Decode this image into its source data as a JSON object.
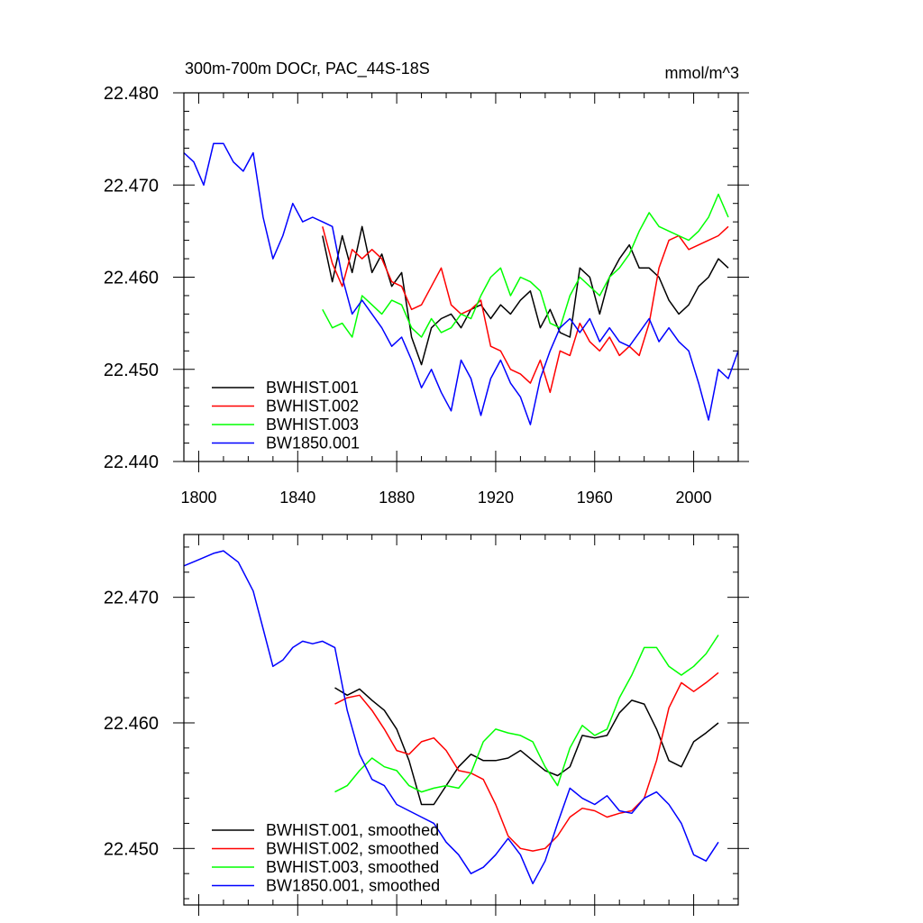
{
  "chart_data": [
    {
      "type": "line",
      "title": "300m-700m DOCr, PAC_44S-18S",
      "units": "mmol/m^3",
      "xlabel": "",
      "ylabel": "",
      "xlim": [
        1794,
        2018
      ],
      "ylim": [
        22.44,
        22.48
      ],
      "xticks": [
        1800,
        1840,
        1880,
        1920,
        1960,
        2000
      ],
      "xtick_labels": [
        "1800",
        "1840",
        "1880",
        "1920",
        "1960",
        "2000"
      ],
      "yticks": [
        22.44,
        22.45,
        22.46,
        22.47,
        22.48
      ],
      "ytick_labels": [
        "22.440",
        "22.450",
        "22.460",
        "22.470",
        "22.480"
      ],
      "grid": false,
      "legend_position": "bottom-left",
      "series": [
        {
          "name": "BWHIST.001",
          "color": "#000000",
          "x": [
            1850,
            1854,
            1858,
            1862,
            1866,
            1870,
            1874,
            1878,
            1882,
            1886,
            1890,
            1894,
            1898,
            1902,
            1906,
            1910,
            1914,
            1918,
            1922,
            1926,
            1930,
            1934,
            1938,
            1942,
            1946,
            1950,
            1954,
            1958,
            1962,
            1966,
            1970,
            1974,
            1978,
            1982,
            1986,
            1990,
            1994,
            1998,
            2002,
            2006,
            2010,
            2014
          ],
          "y": [
            22.4645,
            22.4595,
            22.4645,
            22.4605,
            22.4655,
            22.4605,
            22.4625,
            22.459,
            22.4605,
            22.4535,
            22.4505,
            22.4545,
            22.4555,
            22.456,
            22.4545,
            22.4565,
            22.457,
            22.4555,
            22.457,
            22.456,
            22.4575,
            22.4585,
            22.4545,
            22.4565,
            22.454,
            22.4535,
            22.461,
            22.46,
            22.456,
            22.46,
            22.462,
            22.4635,
            22.461,
            22.461,
            22.46,
            22.4575,
            22.456,
            22.457,
            22.459,
            22.46,
            22.462,
            22.461
          ]
        },
        {
          "name": "BWHIST.002",
          "color": "#ff0000",
          "x": [
            1850,
            1854,
            1858,
            1862,
            1866,
            1870,
            1874,
            1878,
            1882,
            1886,
            1890,
            1894,
            1898,
            1902,
            1906,
            1910,
            1914,
            1918,
            1922,
            1926,
            1930,
            1934,
            1938,
            1942,
            1946,
            1950,
            1954,
            1958,
            1962,
            1966,
            1970,
            1974,
            1978,
            1982,
            1986,
            1990,
            1994,
            1998,
            2002,
            2006,
            2010,
            2014
          ],
          "y": [
            22.4655,
            22.4615,
            22.459,
            22.463,
            22.462,
            22.463,
            22.462,
            22.4595,
            22.459,
            22.4565,
            22.457,
            22.459,
            22.461,
            22.457,
            22.456,
            22.4565,
            22.4575,
            22.4525,
            22.452,
            22.45,
            22.4495,
            22.4485,
            22.451,
            22.4475,
            22.452,
            22.4515,
            22.455,
            22.453,
            22.452,
            22.4535,
            22.4515,
            22.4525,
            22.4515,
            22.455,
            22.461,
            22.464,
            22.4645,
            22.463,
            22.4635,
            22.464,
            22.4645,
            22.4655
          ]
        },
        {
          "name": "BWHIST.003",
          "color": "#00ff00",
          "x": [
            1850,
            1854,
            1858,
            1862,
            1866,
            1870,
            1874,
            1878,
            1882,
            1886,
            1890,
            1894,
            1898,
            1902,
            1906,
            1910,
            1914,
            1918,
            1922,
            1926,
            1930,
            1934,
            1938,
            1942,
            1946,
            1950,
            1954,
            1958,
            1962,
            1966,
            1970,
            1974,
            1978,
            1982,
            1986,
            1990,
            1994,
            1998,
            2002,
            2006,
            2010,
            2014
          ],
          "y": [
            22.4565,
            22.4545,
            22.455,
            22.4535,
            22.458,
            22.457,
            22.456,
            22.4575,
            22.457,
            22.4545,
            22.4535,
            22.4555,
            22.454,
            22.4545,
            22.456,
            22.4555,
            22.458,
            22.46,
            22.461,
            22.458,
            22.46,
            22.4595,
            22.4585,
            22.455,
            22.4545,
            22.458,
            22.46,
            22.459,
            22.458,
            22.46,
            22.461,
            22.4625,
            22.465,
            22.467,
            22.4655,
            22.465,
            22.4645,
            22.464,
            22.465,
            22.4665,
            22.469,
            22.4665
          ]
        },
        {
          "name": "BW1850.001",
          "color": "#0000ff",
          "x": [
            1794,
            1798,
            1802,
            1806,
            1810,
            1814,
            1818,
            1822,
            1826,
            1830,
            1834,
            1838,
            1842,
            1846,
            1850,
            1854,
            1858,
            1862,
            1866,
            1870,
            1874,
            1878,
            1882,
            1886,
            1890,
            1894,
            1898,
            1902,
            1906,
            1910,
            1914,
            1918,
            1922,
            1926,
            1930,
            1934,
            1938,
            1942,
            1946,
            1950,
            1954,
            1958,
            1962,
            1966,
            1970,
            1974,
            1978,
            1982,
            1986,
            1990,
            1994,
            1998,
            2002,
            2006,
            2010,
            2014,
            2018
          ],
          "y": [
            22.4735,
            22.4725,
            22.47,
            22.4745,
            22.4745,
            22.4725,
            22.4715,
            22.4735,
            22.4665,
            22.462,
            22.4645,
            22.468,
            22.466,
            22.4665,
            22.466,
            22.4655,
            22.46,
            22.456,
            22.4575,
            22.456,
            22.4545,
            22.4525,
            22.4535,
            22.451,
            22.448,
            22.45,
            22.4475,
            22.4455,
            22.451,
            22.449,
            22.445,
            22.449,
            22.451,
            22.4485,
            22.447,
            22.444,
            22.449,
            22.452,
            22.4545,
            22.4555,
            22.454,
            22.4555,
            22.453,
            22.4545,
            22.453,
            22.4525,
            22.454,
            22.4555,
            22.453,
            22.4545,
            22.453,
            22.452,
            22.4485,
            22.4445,
            22.45,
            22.449,
            22.452
          ]
        }
      ]
    },
    {
      "type": "line",
      "title": "",
      "xlabel": "",
      "ylabel": "",
      "xlim": [
        1794,
        2018
      ],
      "ylim": [
        22.4455,
        22.475
      ],
      "xticks": [
        1800,
        1840,
        1880,
        1920,
        1960,
        2000
      ],
      "yticks": [
        22.45,
        22.46,
        22.47
      ],
      "ytick_labels": [
        "22.450",
        "22.460",
        "22.470"
      ],
      "grid": false,
      "legend_position": "bottom-left",
      "series": [
        {
          "name": "BWHIST.001, smoothed",
          "color": "#000000",
          "x": [
            1855,
            1860,
            1865,
            1870,
            1875,
            1880,
            1885,
            1890,
            1895,
            1900,
            1905,
            1910,
            1915,
            1920,
            1925,
            1930,
            1935,
            1940,
            1945,
            1950,
            1955,
            1960,
            1965,
            1970,
            1975,
            1980,
            1985,
            1990,
            1995,
            2000,
            2005,
            2010
          ],
          "y": [
            22.4628,
            22.4622,
            22.4627,
            22.4618,
            22.461,
            22.4595,
            22.457,
            22.4535,
            22.4535,
            22.455,
            22.4565,
            22.4575,
            22.457,
            22.457,
            22.4572,
            22.4578,
            22.457,
            22.4562,
            22.4558,
            22.4565,
            22.459,
            22.4588,
            22.459,
            22.4608,
            22.4618,
            22.4615,
            22.4595,
            22.457,
            22.4565,
            22.4585,
            22.4592,
            22.46
          ]
        },
        {
          "name": "BWHIST.002, smoothed",
          "color": "#ff0000",
          "x": [
            1855,
            1860,
            1865,
            1870,
            1875,
            1880,
            1885,
            1890,
            1895,
            1900,
            1905,
            1910,
            1915,
            1920,
            1925,
            1930,
            1935,
            1940,
            1945,
            1950,
            1955,
            1960,
            1965,
            1970,
            1975,
            1980,
            1985,
            1990,
            1995,
            2000,
            2005,
            2010
          ],
          "y": [
            22.4615,
            22.462,
            22.4622,
            22.461,
            22.4595,
            22.4578,
            22.4575,
            22.4585,
            22.4588,
            22.4578,
            22.4562,
            22.456,
            22.4555,
            22.4535,
            22.451,
            22.45,
            22.4498,
            22.45,
            22.451,
            22.4525,
            22.4532,
            22.453,
            22.4525,
            22.4528,
            22.453,
            22.454,
            22.457,
            22.4612,
            22.4632,
            22.4625,
            22.4632,
            22.464
          ]
        },
        {
          "name": "BWHIST.003, smoothed",
          "color": "#00ff00",
          "x": [
            1855,
            1860,
            1865,
            1870,
            1875,
            1880,
            1885,
            1890,
            1895,
            1900,
            1905,
            1910,
            1915,
            1920,
            1925,
            1930,
            1935,
            1940,
            1945,
            1950,
            1955,
            1960,
            1965,
            1970,
            1975,
            1980,
            1985,
            1990,
            1995,
            2000,
            2005,
            2010
          ],
          "y": [
            22.4545,
            22.455,
            22.4562,
            22.4572,
            22.4565,
            22.4562,
            22.455,
            22.4545,
            22.4548,
            22.455,
            22.4548,
            22.456,
            22.4585,
            22.4595,
            22.4592,
            22.459,
            22.4585,
            22.4565,
            22.455,
            22.458,
            22.4598,
            22.459,
            22.4595,
            22.462,
            22.4638,
            22.466,
            22.466,
            22.4645,
            22.4638,
            22.4645,
            22.4655,
            22.467
          ]
        },
        {
          "name": "BW1850.001, smoothed",
          "color": "#0000ff",
          "x": [
            1794,
            1800,
            1806,
            1810,
            1816,
            1822,
            1826,
            1830,
            1834,
            1838,
            1842,
            1846,
            1850,
            1855,
            1860,
            1865,
            1870,
            1875,
            1880,
            1885,
            1890,
            1895,
            1900,
            1905,
            1910,
            1915,
            1920,
            1925,
            1930,
            1935,
            1940,
            1945,
            1950,
            1955,
            1960,
            1965,
            1970,
            1975,
            1980,
            1985,
            1990,
            1995,
            2000,
            2005,
            2010
          ],
          "y": [
            22.4725,
            22.473,
            22.4735,
            22.4737,
            22.4728,
            22.4705,
            22.4675,
            22.4645,
            22.465,
            22.466,
            22.4665,
            22.4663,
            22.4665,
            22.466,
            22.461,
            22.4575,
            22.4555,
            22.455,
            22.4535,
            22.453,
            22.4525,
            22.452,
            22.4505,
            22.4495,
            22.448,
            22.4485,
            22.4495,
            22.4508,
            22.4495,
            22.4472,
            22.449,
            22.452,
            22.4548,
            22.454,
            22.4535,
            22.4542,
            22.453,
            22.4528,
            22.454,
            22.4545,
            22.4535,
            22.452,
            22.4495,
            22.449,
            22.4505
          ]
        }
      ]
    }
  ]
}
